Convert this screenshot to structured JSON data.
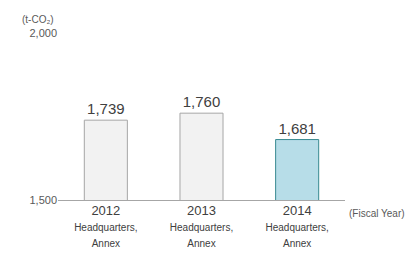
{
  "chart_data": {
    "type": "bar",
    "y_label": "(t-CO₂)",
    "x_label": "(Fiscal Year)",
    "categories": [
      "2012\nHeadquarters,\nAnnex",
      "2013\nHeadquarters,\nAnnex",
      "2014\nHeadquarters,\nAnnex"
    ],
    "values": [
      1739,
      1760,
      1681
    ],
    "value_labels": [
      "1,739",
      "1,760",
      "1,681"
    ],
    "data_labels": true,
    "colors": [
      "#f2f2f2",
      "#f2f2f2",
      "#b7dde8"
    ],
    "ylim": [
      1500,
      2000
    ],
    "yticks": [
      {
        "value": 1500,
        "label": "1,500"
      },
      {
        "value": 2000,
        "label": "2,000"
      }
    ],
    "grid": true
  }
}
